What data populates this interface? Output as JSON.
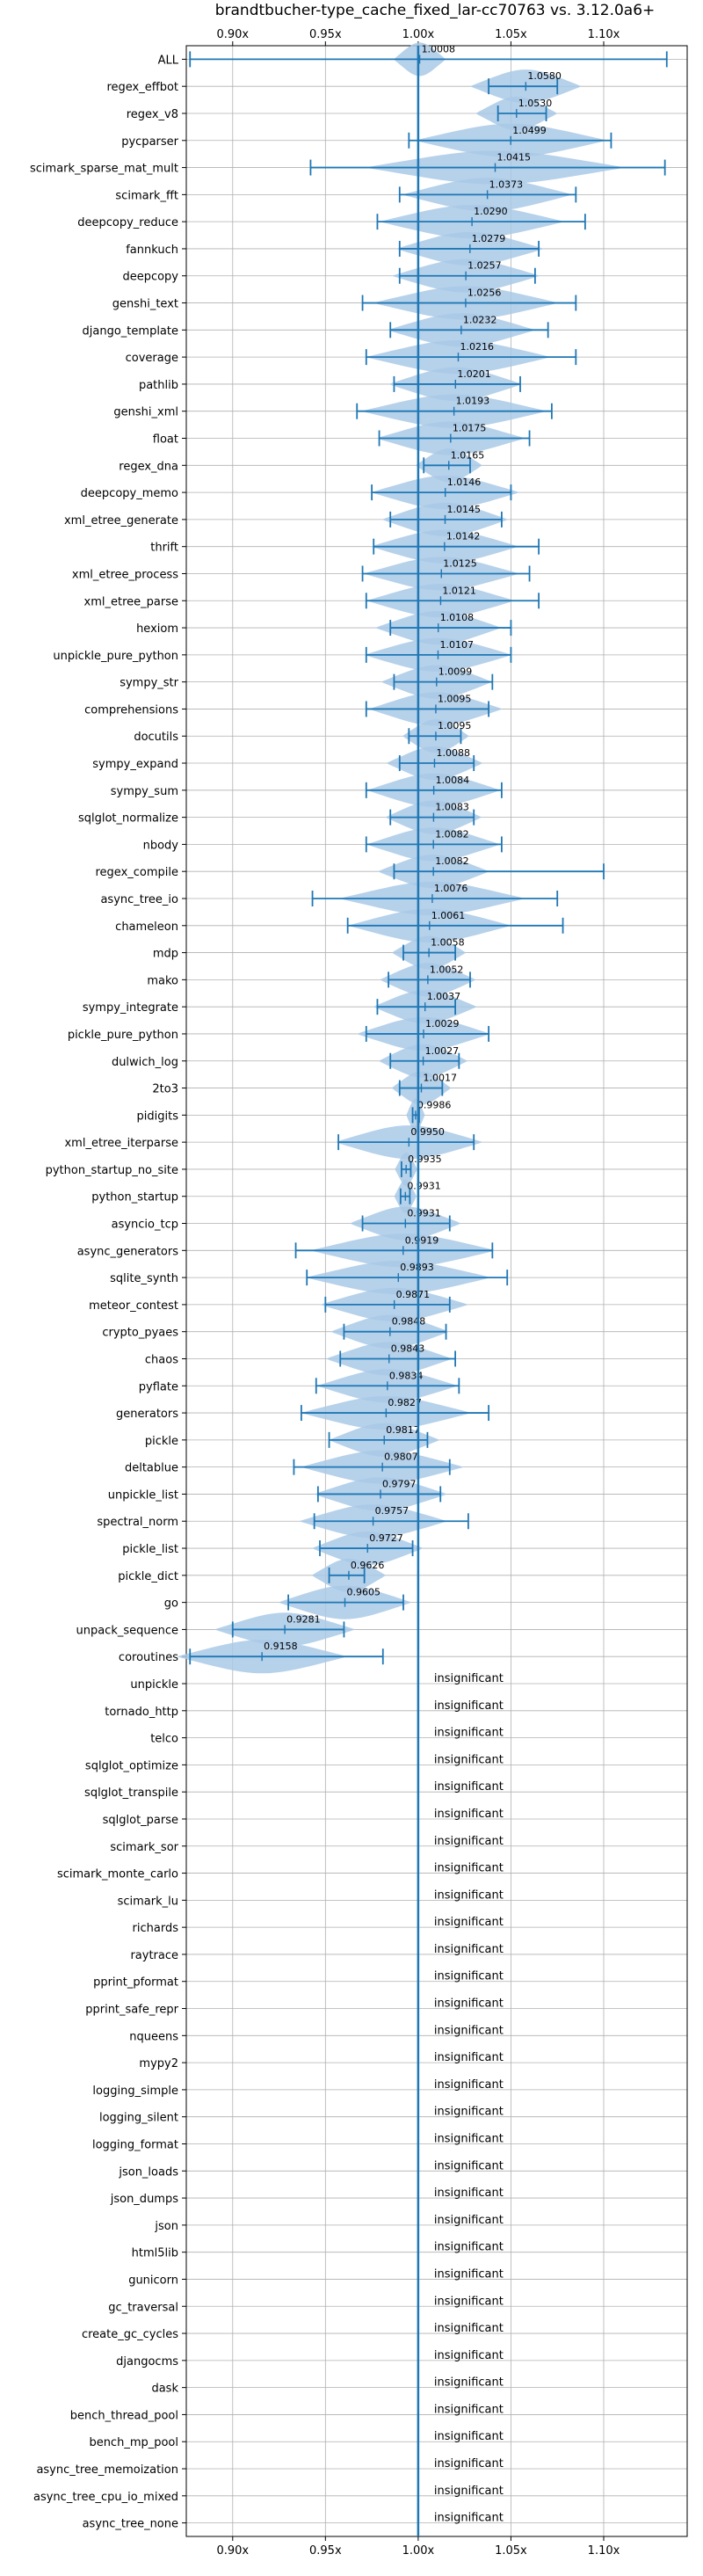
{
  "chart_data": {
    "type": "violin",
    "title": "brandtbucher-type_cache_fixed_lar-cc70763 vs. 3.12.0a6+",
    "xlim": [
      0.875,
      1.145
    ],
    "x_ticks": [
      0.9,
      0.95,
      1.0,
      1.05,
      1.1
    ],
    "x_tick_labels": [
      "0.90x",
      "0.95x",
      "1.00x",
      "1.05x",
      "1.10x"
    ],
    "reference_line": 1.0,
    "grid": true,
    "colors": {
      "violin": "#a9c9e6",
      "whisker": "#1f77b4",
      "grid": "#b0b0b0",
      "axis": "#000000"
    },
    "insignificant_label": "insignificant",
    "rows": [
      {
        "name": "ALL",
        "value": 1.0008,
        "label": "1.0008",
        "min": 0.877,
        "max": 1.134,
        "width": 0.014
      },
      {
        "name": "regex_effbot",
        "value": 1.058,
        "label": "1.0580",
        "min": 1.038,
        "max": 1.075,
        "width": 0.03
      },
      {
        "name": "regex_v8",
        "value": 1.053,
        "label": "1.0530",
        "min": 1.043,
        "max": 1.069,
        "width": 0.022
      },
      {
        "name": "pycparser",
        "value": 1.0499,
        "label": "1.0499",
        "min": 0.995,
        "max": 1.104,
        "width": 0.052
      },
      {
        "name": "scimark_sparse_mat_mult",
        "value": 1.0415,
        "label": "1.0415",
        "min": 0.942,
        "max": 1.133,
        "width": 0.07
      },
      {
        "name": "scimark_fft",
        "value": 1.0373,
        "label": "1.0373",
        "min": 0.99,
        "max": 1.085,
        "width": 0.046
      },
      {
        "name": "deepcopy_reduce",
        "value": 1.029,
        "label": "1.0290",
        "min": 0.978,
        "max": 1.09,
        "width": 0.05
      },
      {
        "name": "fannkuch",
        "value": 1.0279,
        "label": "1.0279",
        "min": 0.99,
        "max": 1.065,
        "width": 0.04
      },
      {
        "name": "deepcopy",
        "value": 1.0257,
        "label": "1.0257",
        "min": 0.99,
        "max": 1.063,
        "width": 0.04
      },
      {
        "name": "genshi_text",
        "value": 1.0256,
        "label": "1.0256",
        "min": 0.97,
        "max": 1.085,
        "width": 0.05
      },
      {
        "name": "django_template",
        "value": 1.0232,
        "label": "1.0232",
        "min": 0.985,
        "max": 1.07,
        "width": 0.04
      },
      {
        "name": "coverage",
        "value": 1.0216,
        "label": "1.0216",
        "min": 0.972,
        "max": 1.085,
        "width": 0.05
      },
      {
        "name": "pathlib",
        "value": 1.0201,
        "label": "1.0201",
        "min": 0.987,
        "max": 1.055,
        "width": 0.036
      },
      {
        "name": "genshi_xml",
        "value": 1.0193,
        "label": "1.0193",
        "min": 0.967,
        "max": 1.072,
        "width": 0.05
      },
      {
        "name": "float",
        "value": 1.0175,
        "label": "1.0175",
        "min": 0.979,
        "max": 1.06,
        "width": 0.04
      },
      {
        "name": "regex_dna",
        "value": 1.0165,
        "label": "1.0165",
        "min": 1.003,
        "max": 1.028,
        "width": 0.018
      },
      {
        "name": "deepcopy_memo",
        "value": 1.0146,
        "label": "1.0146",
        "min": 0.975,
        "max": 1.05,
        "width": 0.04
      },
      {
        "name": "xml_etree_generate",
        "value": 1.0145,
        "label": "1.0145",
        "min": 0.985,
        "max": 1.045,
        "width": 0.034
      },
      {
        "name": "thrift",
        "value": 1.0142,
        "label": "1.0142",
        "min": 0.976,
        "max": 1.065,
        "width": 0.04
      },
      {
        "name": "xml_etree_process",
        "value": 1.0125,
        "label": "1.0125",
        "min": 0.97,
        "max": 1.06,
        "width": 0.042
      },
      {
        "name": "xml_etree_parse",
        "value": 1.0121,
        "label": "1.0121",
        "min": 0.972,
        "max": 1.065,
        "width": 0.04
      },
      {
        "name": "hexiom",
        "value": 1.0108,
        "label": "1.0108",
        "min": 0.985,
        "max": 1.05,
        "width": 0.034
      },
      {
        "name": "unpickle_pure_python",
        "value": 1.0107,
        "label": "1.0107",
        "min": 0.972,
        "max": 1.05,
        "width": 0.04
      },
      {
        "name": "sympy_str",
        "value": 1.0099,
        "label": "1.0099",
        "min": 0.987,
        "max": 1.04,
        "width": 0.03
      },
      {
        "name": "comprehensions",
        "value": 1.0095,
        "label": "1.0095",
        "min": 0.972,
        "max": 1.038,
        "width": 0.036
      },
      {
        "name": "docutils",
        "value": 1.0095,
        "label": "1.0095",
        "min": 0.995,
        "max": 1.023,
        "width": 0.018
      },
      {
        "name": "sympy_expand",
        "value": 1.0088,
        "label": "1.0088",
        "min": 0.99,
        "max": 1.03,
        "width": 0.026
      },
      {
        "name": "sympy_sum",
        "value": 1.0084,
        "label": "1.0084",
        "min": 0.972,
        "max": 1.045,
        "width": 0.036
      },
      {
        "name": "sqlglot_normalize",
        "value": 1.0083,
        "label": "1.0083",
        "min": 0.985,
        "max": 1.03,
        "width": 0.026
      },
      {
        "name": "nbody",
        "value": 1.0082,
        "label": "1.0082",
        "min": 0.972,
        "max": 1.045,
        "width": 0.036
      },
      {
        "name": "regex_compile",
        "value": 1.0082,
        "label": "1.0082",
        "min": 0.987,
        "max": 1.1,
        "width": 0.03
      },
      {
        "name": "async_tree_io",
        "value": 1.0076,
        "label": "1.0076",
        "min": 0.943,
        "max": 1.075,
        "width": 0.05
      },
      {
        "name": "chameleon",
        "value": 1.0061,
        "label": "1.0061",
        "min": 0.962,
        "max": 1.078,
        "width": 0.044
      },
      {
        "name": "mdp",
        "value": 1.0058,
        "label": "1.0058",
        "min": 0.992,
        "max": 1.02,
        "width": 0.02
      },
      {
        "name": "mako",
        "value": 1.0052,
        "label": "1.0052",
        "min": 0.984,
        "max": 1.028,
        "width": 0.026
      },
      {
        "name": "sympy_integrate",
        "value": 1.0037,
        "label": "1.0037",
        "min": 0.978,
        "max": 1.02,
        "width": 0.028
      },
      {
        "name": "pickle_pure_python",
        "value": 1.0029,
        "label": "1.0029",
        "min": 0.972,
        "max": 1.038,
        "width": 0.036
      },
      {
        "name": "dulwich_log",
        "value": 1.0027,
        "label": "1.0027",
        "min": 0.985,
        "max": 1.022,
        "width": 0.024
      },
      {
        "name": "2to3",
        "value": 1.0017,
        "label": "1.0017",
        "min": 0.99,
        "max": 1.013,
        "width": 0.016
      },
      {
        "name": "pidigits",
        "value": 0.9986,
        "label": "0.9986",
        "min": 0.997,
        "max": 1.0005,
        "width": 0.005
      },
      {
        "name": "xml_etree_iterparse",
        "value": 0.995,
        "label": "0.9950",
        "min": 0.957,
        "max": 1.03,
        "width": 0.04
      },
      {
        "name": "python_startup_no_site",
        "value": 0.9935,
        "label": "0.9935",
        "min": 0.991,
        "max": 0.996,
        "width": 0.006
      },
      {
        "name": "python_startup",
        "value": 0.9931,
        "label": "0.9931",
        "min": 0.9905,
        "max": 0.9955,
        "width": 0.006
      },
      {
        "name": "asyncio_tcp",
        "value": 0.9931,
        "label": "0.9931",
        "min": 0.97,
        "max": 1.017,
        "width": 0.03
      },
      {
        "name": "async_generators",
        "value": 0.9919,
        "label": "0.9919",
        "min": 0.934,
        "max": 1.04,
        "width": 0.05
      },
      {
        "name": "sqlite_synth",
        "value": 0.9893,
        "label": "0.9893",
        "min": 0.94,
        "max": 1.048,
        "width": 0.05
      },
      {
        "name": "meteor_contest",
        "value": 0.9871,
        "label": "0.9871",
        "min": 0.95,
        "max": 1.017,
        "width": 0.04
      },
      {
        "name": "crypto_pyaes",
        "value": 0.9848,
        "label": "0.9848",
        "min": 0.96,
        "max": 1.015,
        "width": 0.032
      },
      {
        "name": "chaos",
        "value": 0.9843,
        "label": "0.9843",
        "min": 0.958,
        "max": 1.02,
        "width": 0.034
      },
      {
        "name": "pyflate",
        "value": 0.9834,
        "label": "0.9834",
        "min": 0.945,
        "max": 1.022,
        "width": 0.038
      },
      {
        "name": "generators",
        "value": 0.9827,
        "label": "0.9827",
        "min": 0.937,
        "max": 1.038,
        "width": 0.046
      },
      {
        "name": "pickle",
        "value": 0.9817,
        "label": "0.9817",
        "min": 0.952,
        "max": 1.005,
        "width": 0.03
      },
      {
        "name": "deltablue",
        "value": 0.9807,
        "label": "0.9807",
        "min": 0.933,
        "max": 1.017,
        "width": 0.044
      },
      {
        "name": "unpickle_list",
        "value": 0.9797,
        "label": "0.9797",
        "min": 0.946,
        "max": 1.012,
        "width": 0.036
      },
      {
        "name": "spectral_norm",
        "value": 0.9757,
        "label": "0.9757",
        "min": 0.944,
        "max": 1.027,
        "width": 0.04
      },
      {
        "name": "pickle_list",
        "value": 0.9727,
        "label": "0.9727",
        "min": 0.947,
        "max": 0.997,
        "width": 0.03
      },
      {
        "name": "pickle_dict",
        "value": 0.9626,
        "label": "0.9626",
        "min": 0.952,
        "max": 0.971,
        "width": 0.02
      },
      {
        "name": "go",
        "value": 0.9605,
        "label": "0.9605",
        "min": 0.93,
        "max": 0.992,
        "width": 0.036
      },
      {
        "name": "unpack_sequence",
        "value": 0.9281,
        "label": "0.9281",
        "min": 0.9,
        "max": 0.96,
        "width": 0.038
      },
      {
        "name": "coroutines",
        "value": 0.9158,
        "label": "0.9158",
        "min": 0.877,
        "max": 0.981,
        "width": 0.046
      },
      {
        "name": "unpickle",
        "insignificant": true
      },
      {
        "name": "tornado_http",
        "insignificant": true
      },
      {
        "name": "telco",
        "insignificant": true
      },
      {
        "name": "sqlglot_optimize",
        "insignificant": true
      },
      {
        "name": "sqlglot_transpile",
        "insignificant": true
      },
      {
        "name": "sqlglot_parse",
        "insignificant": true
      },
      {
        "name": "scimark_sor",
        "insignificant": true
      },
      {
        "name": "scimark_monte_carlo",
        "insignificant": true
      },
      {
        "name": "scimark_lu",
        "insignificant": true
      },
      {
        "name": "richards",
        "insignificant": true
      },
      {
        "name": "raytrace",
        "insignificant": true
      },
      {
        "name": "pprint_pformat",
        "insignificant": true
      },
      {
        "name": "pprint_safe_repr",
        "insignificant": true
      },
      {
        "name": "nqueens",
        "insignificant": true
      },
      {
        "name": "mypy2",
        "insignificant": true
      },
      {
        "name": "logging_simple",
        "insignificant": true
      },
      {
        "name": "logging_silent",
        "insignificant": true
      },
      {
        "name": "logging_format",
        "insignificant": true
      },
      {
        "name": "json_loads",
        "insignificant": true
      },
      {
        "name": "json_dumps",
        "insignificant": true
      },
      {
        "name": "json",
        "insignificant": true
      },
      {
        "name": "html5lib",
        "insignificant": true
      },
      {
        "name": "gunicorn",
        "insignificant": true
      },
      {
        "name": "gc_traversal",
        "insignificant": true
      },
      {
        "name": "create_gc_cycles",
        "insignificant": true
      },
      {
        "name": "djangocms",
        "insignificant": true
      },
      {
        "name": "dask",
        "insignificant": true
      },
      {
        "name": "bench_thread_pool",
        "insignificant": true
      },
      {
        "name": "bench_mp_pool",
        "insignificant": true
      },
      {
        "name": "async_tree_memoization",
        "insignificant": true
      },
      {
        "name": "async_tree_cpu_io_mixed",
        "insignificant": true
      },
      {
        "name": "async_tree_none",
        "insignificant": true
      }
    ]
  }
}
